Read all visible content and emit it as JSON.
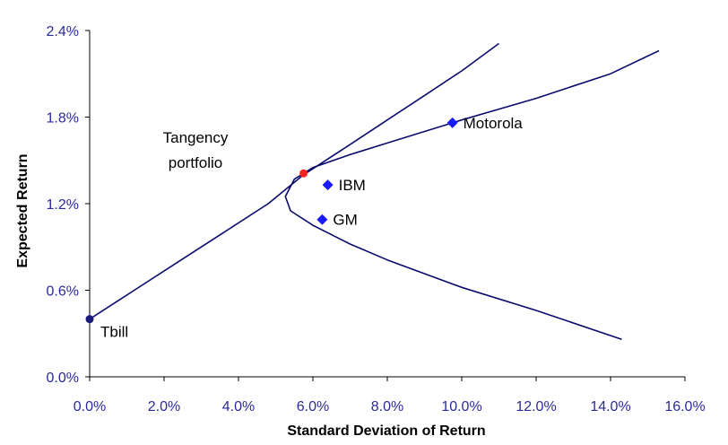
{
  "chart_data": {
    "type": "scatter",
    "xlabel": "Standard Deviation of Return",
    "ylabel": "Expected Return",
    "xlim": [
      0,
      16
    ],
    "ylim": [
      0,
      2.4
    ],
    "x_ticks": [
      "0.0%",
      "2.0%",
      "4.0%",
      "6.0%",
      "8.0%",
      "10.0%",
      "12.0%",
      "14.0%",
      "16.0%"
    ],
    "y_ticks": [
      "0.0%",
      "0.6%",
      "1.2%",
      "1.8%",
      "2.4%"
    ],
    "grid": false,
    "series": [
      {
        "kind": "line",
        "x": [
          0.0,
          1.2,
          2.4,
          3.6,
          4.8,
          5.75,
          7.0,
          8.0,
          9.0,
          10.0,
          11.0
        ],
        "y": [
          0.4,
          0.6,
          0.8,
          1.0,
          1.2,
          1.4,
          1.61,
          1.78,
          1.95,
          2.12,
          2.31
        ]
      },
      {
        "kind": "line",
        "x": [
          14.3,
          12.0,
          10.0,
          8.0,
          7.0,
          6.0,
          5.4,
          5.26,
          5.5,
          6.0,
          7.0,
          8.0,
          10.0,
          12.0,
          14.0,
          15.3
        ],
        "y": [
          0.26,
          0.46,
          0.62,
          0.81,
          0.92,
          1.05,
          1.15,
          1.25,
          1.37,
          1.45,
          1.54,
          1.62,
          1.78,
          1.93,
          2.1,
          2.26
        ]
      }
    ],
    "points": [
      {
        "label": "Tbill",
        "x": 0.0,
        "y": 0.4,
        "color": "#1a1a7a",
        "marker": "circle"
      },
      {
        "label": "",
        "x": 5.75,
        "y": 1.41,
        "color": "#ff2020",
        "marker": "circle"
      },
      {
        "label": "IBM",
        "x": 6.4,
        "y": 1.33,
        "color": "#1a1aff",
        "marker": "diamond"
      },
      {
        "label": "GM",
        "x": 6.25,
        "y": 1.09,
        "color": "#1a1aff",
        "marker": "diamond"
      },
      {
        "label": "Motorola",
        "x": 9.75,
        "y": 1.76,
        "color": "#1a1aff",
        "marker": "diamond"
      }
    ],
    "annotations": [
      "Tangency",
      "portfolio"
    ],
    "colors": {
      "line": "#0a0a6e",
      "axis": "#000000",
      "tick_text": "#2a2a9a"
    }
  }
}
